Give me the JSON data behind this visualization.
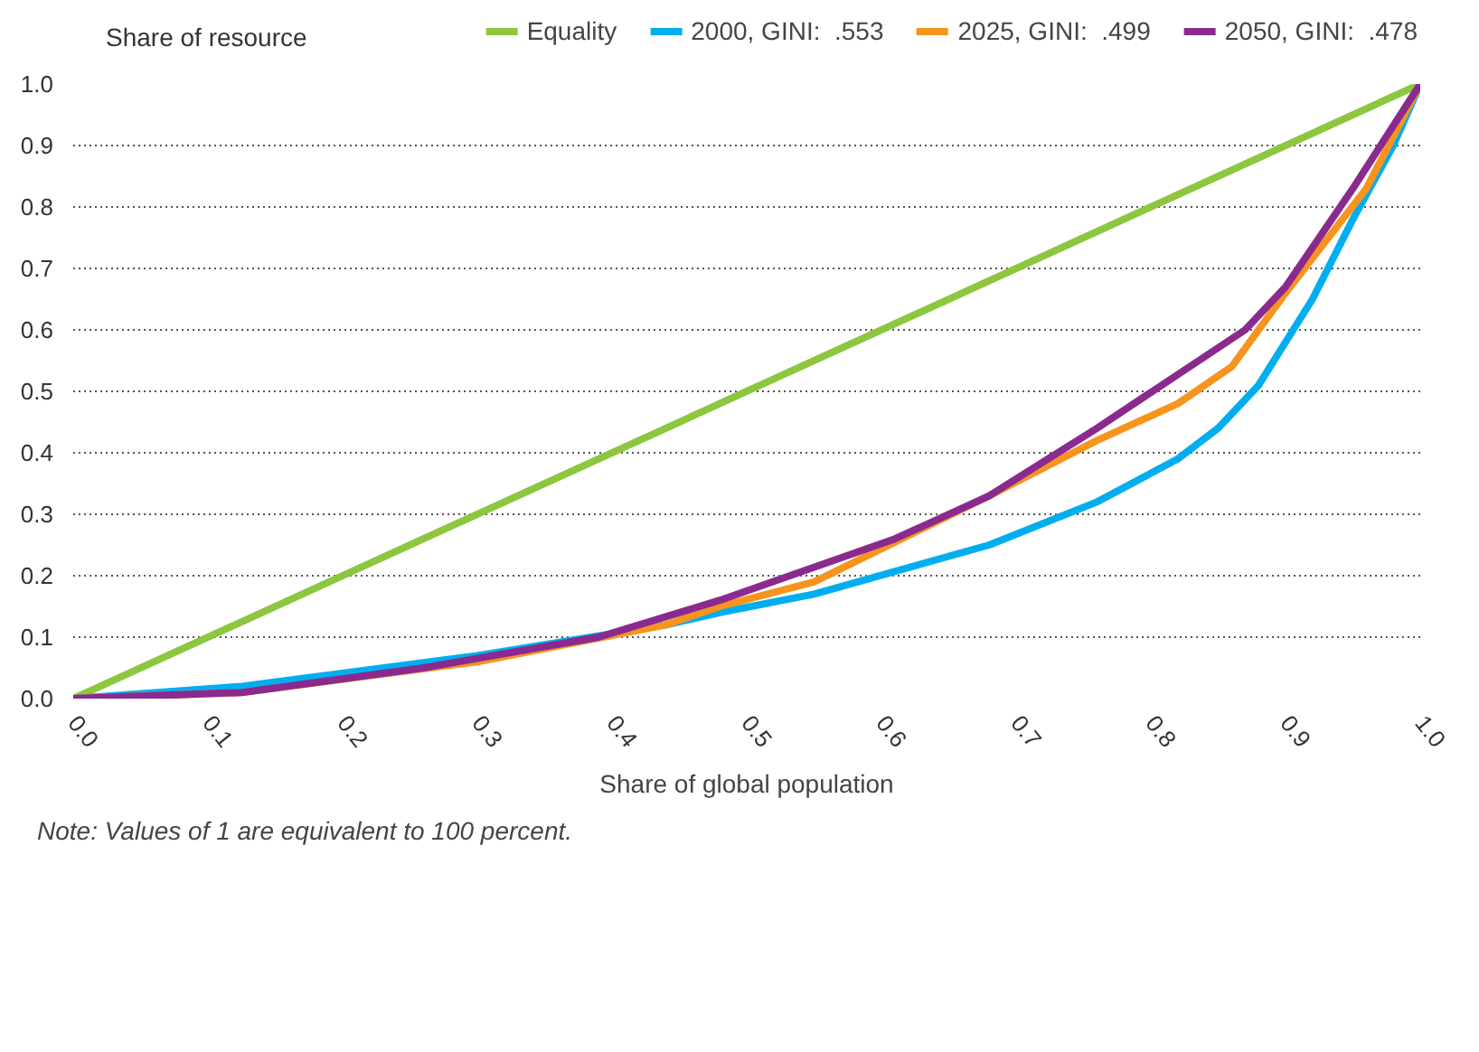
{
  "chart_data": {
    "type": "line",
    "xlabel": "Share of global population",
    "ylabel": "Share of resource",
    "xlim": [
      0,
      1
    ],
    "ylim": [
      0,
      1
    ],
    "xticks": [
      {
        "value": 0,
        "label": "0.0"
      },
      0.1,
      0.2,
      0.3,
      0.4,
      0.5,
      0.6,
      0.7,
      0.8,
      0.9,
      {
        "value": 1,
        "label": "1.0"
      }
    ],
    "yticks": [
      {
        "value": 0,
        "label": "0.0"
      },
      0.1,
      0.2,
      0.3,
      0.4,
      0.5,
      0.6,
      0.7,
      0.8,
      0.9,
      {
        "value": 1,
        "label": "1.0"
      }
    ],
    "grid": "y",
    "legend": "top right",
    "marker": "none",
    "line_style": "solid",
    "annotations": [
      "Note: Values of 1 are equivalent to 100 percent."
    ],
    "series": [
      {
        "name": "Equality",
        "color": "#8dc63f",
        "x": [
          0,
          1
        ],
        "values": [
          0,
          1
        ]
      },
      {
        "name": "2000, GINI:  .553",
        "color": "#00aeef",
        "x": [
          0,
          0.125,
          0.3,
          0.44,
          0.48,
          0.55,
          0.68,
          0.76,
          0.82,
          0.85,
          0.88,
          0.92,
          0.95,
          0.98,
          1
        ],
        "values": [
          0,
          0.02,
          0.07,
          0.12,
          0.14,
          0.17,
          0.25,
          0.32,
          0.39,
          0.44,
          0.51,
          0.65,
          0.78,
          0.9,
          1
        ]
      },
      {
        "name": "2025, GINI:  .499",
        "color": "#f7941d",
        "x": [
          0,
          0.125,
          0.3,
          0.44,
          0.48,
          0.55,
          0.68,
          0.76,
          0.82,
          0.86,
          0.9,
          0.96,
          1
        ],
        "values": [
          0,
          0.01,
          0.06,
          0.12,
          0.15,
          0.19,
          0.33,
          0.42,
          0.48,
          0.54,
          0.66,
          0.83,
          1
        ]
      },
      {
        "name": "2050, GINI:  .478",
        "color": "#8b2a8e",
        "x": [
          0,
          0.125,
          0.26,
          0.39,
          0.48,
          0.61,
          0.68,
          0.76,
          0.87,
          0.9,
          0.95,
          1
        ],
        "values": [
          0,
          0.01,
          0.05,
          0.1,
          0.16,
          0.26,
          0.33,
          0.44,
          0.6,
          0.67,
          0.83,
          1
        ]
      }
    ]
  }
}
